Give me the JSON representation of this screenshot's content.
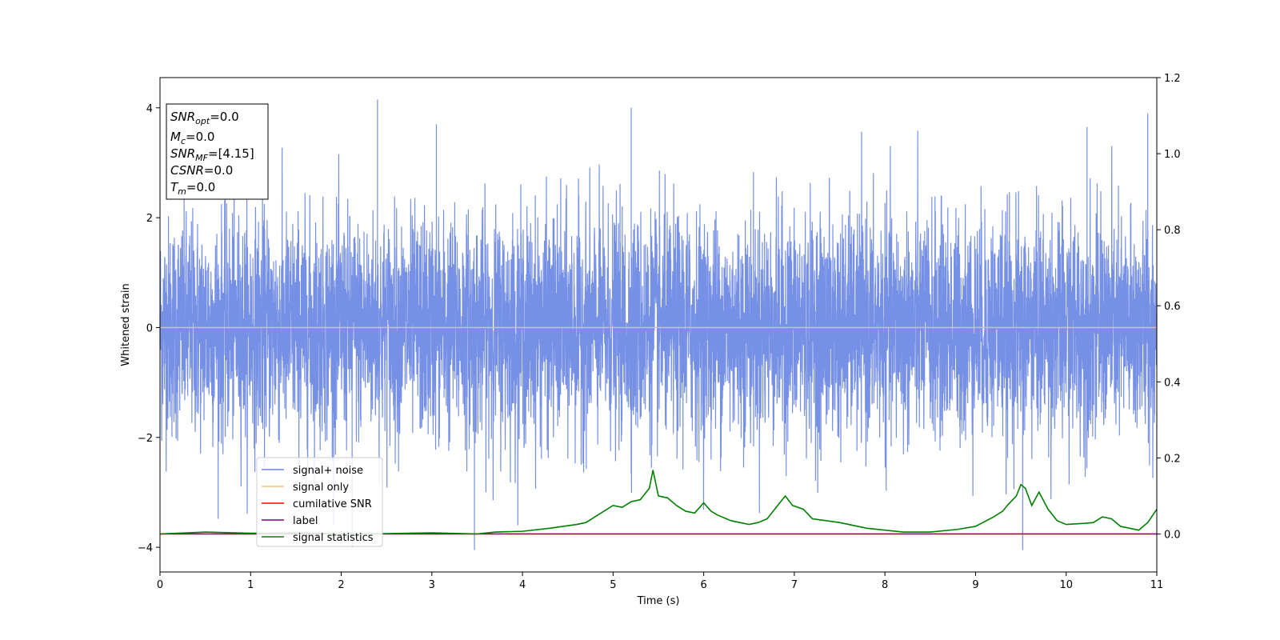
{
  "chart_data": {
    "type": "line",
    "xlabel": "Time (s)",
    "ylabel": "Whitened strain",
    "xlim": [
      0,
      11
    ],
    "ylim": [
      -4.45,
      4.55
    ],
    "y2lim": [
      -0.1,
      1.2
    ],
    "x_ticks": [
      "0",
      "1",
      "2",
      "3",
      "4",
      "5",
      "6",
      "7",
      "8",
      "9",
      "10",
      "11"
    ],
    "y_ticks": [
      "4",
      "2",
      "0",
      "−2",
      "−4"
    ],
    "y2_ticks": [
      "1.2",
      "1.0",
      "0.8",
      "0.6",
      "0.4",
      "0.2",
      "0.0"
    ],
    "info_box": [
      {
        "base": "SNR",
        "sub": "opt",
        "value": "=0.0"
      },
      {
        "base": "M",
        "sub": "c",
        "value": "=0.0"
      },
      {
        "base": "SNR",
        "sub": "MF",
        "value": "=[4.15]"
      },
      {
        "base": "CSNR",
        "sub": "",
        "value": "=0.0"
      },
      {
        "base": "T",
        "sub": "m",
        "value": "=0.0"
      }
    ],
    "legend_position": "lower-left",
    "series": [
      {
        "name": "signal+ noise",
        "color": "#6a87e3",
        "axis": "left",
        "kind": "noise",
        "amplitude": 1.0,
        "peaks": [
          [
            2.4,
            4.15
          ],
          [
            5.2,
            4.0
          ],
          [
            3.05,
            3.7
          ],
          [
            10.9,
            3.9
          ],
          [
            10.23,
            3.65
          ],
          [
            3.47,
            -4.05
          ],
          [
            9.52,
            -4.05
          ],
          [
            2.12,
            -4.0
          ]
        ]
      },
      {
        "name": "signal only",
        "color": "#f5c46a",
        "axis": "left",
        "x": [
          0,
          11
        ],
        "y": [
          0,
          0
        ]
      },
      {
        "name": "cumilative SNR",
        "color": "#ff0000",
        "axis": "right",
        "x": [
          0,
          11
        ],
        "y": [
          0,
          0
        ]
      },
      {
        "name": "label",
        "color": "#800080",
        "axis": "right",
        "x": [
          0,
          11
        ],
        "y": [
          0,
          0
        ]
      },
      {
        "name": "signal statistics",
        "color": "#008000",
        "axis": "right",
        "x": [
          0,
          0.5,
          1.0,
          1.5,
          2.0,
          2.5,
          3.0,
          3.5,
          3.7,
          4.0,
          4.3,
          4.6,
          4.7,
          4.8,
          4.9,
          5.0,
          5.1,
          5.2,
          5.3,
          5.4,
          5.44,
          5.5,
          5.6,
          5.7,
          5.8,
          5.9,
          6.0,
          6.08,
          6.15,
          6.3,
          6.5,
          6.6,
          6.7,
          6.8,
          6.9,
          6.98,
          7.1,
          7.2,
          7.5,
          7.8,
          8.0,
          8.2,
          8.5,
          8.8,
          9.0,
          9.2,
          9.3,
          9.35,
          9.45,
          9.5,
          9.55,
          9.62,
          9.7,
          9.8,
          9.9,
          10.0,
          10.2,
          10.3,
          10.4,
          10.5,
          10.6,
          10.7,
          10.8,
          10.9,
          11.0
        ],
        "y": [
          0.0,
          0.005,
          0.002,
          0.003,
          0.0,
          0.001,
          0.003,
          0.0,
          0.005,
          0.007,
          0.015,
          0.025,
          0.03,
          0.045,
          0.06,
          0.075,
          0.07,
          0.085,
          0.09,
          0.12,
          0.168,
          0.1,
          0.095,
          0.075,
          0.06,
          0.055,
          0.082,
          0.06,
          0.05,
          0.035,
          0.025,
          0.03,
          0.04,
          0.07,
          0.1,
          0.075,
          0.065,
          0.04,
          0.03,
          0.015,
          0.01,
          0.005,
          0.005,
          0.012,
          0.02,
          0.045,
          0.06,
          0.075,
          0.1,
          0.13,
          0.12,
          0.075,
          0.11,
          0.065,
          0.035,
          0.025,
          0.028,
          0.03,
          0.045,
          0.04,
          0.02,
          0.015,
          0.01,
          0.03,
          0.065
        ]
      }
    ]
  }
}
